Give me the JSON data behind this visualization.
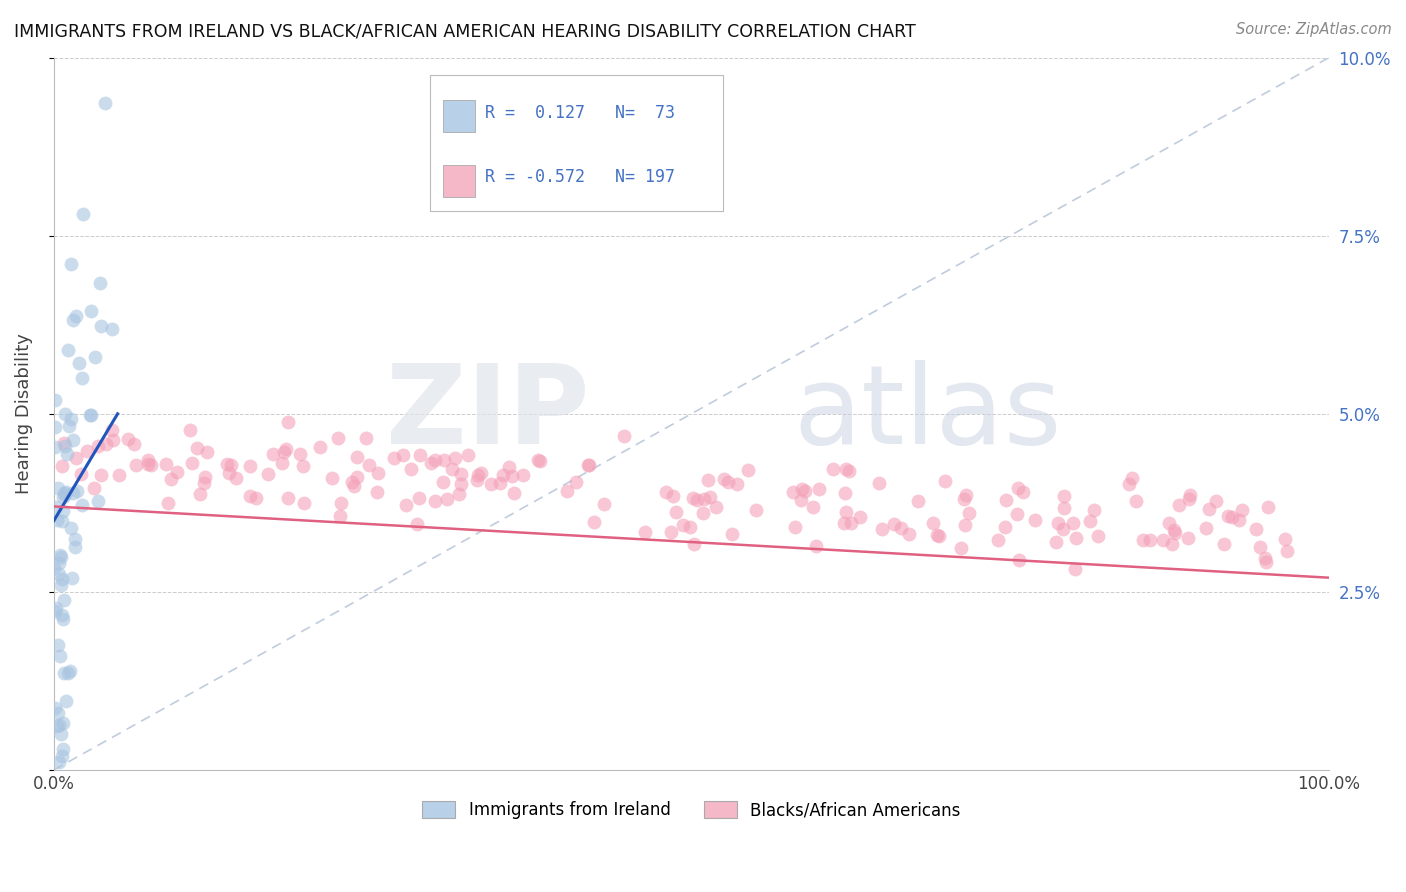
{
  "title": "IMMIGRANTS FROM IRELAND VS BLACK/AFRICAN AMERICAN HEARING DISABILITY CORRELATION CHART",
  "source": "Source: ZipAtlas.com",
  "ylabel": "Hearing Disability",
  "xlim": [
    0,
    1.0
  ],
  "ylim": [
    0,
    0.1
  ],
  "R_ireland": 0.127,
  "N_ireland": 73,
  "R_black": -0.572,
  "N_black": 197,
  "color_ireland": "#a8c4e0",
  "color_black": "#f4a0b8",
  "line_color_ireland": "#2255bb",
  "line_color_black": "#e06080",
  "legend_color_ireland": "#b8d0e8",
  "legend_color_black": "#f4b8c8",
  "background_color": "#ffffff",
  "diag_color": "#c0ccdd"
}
